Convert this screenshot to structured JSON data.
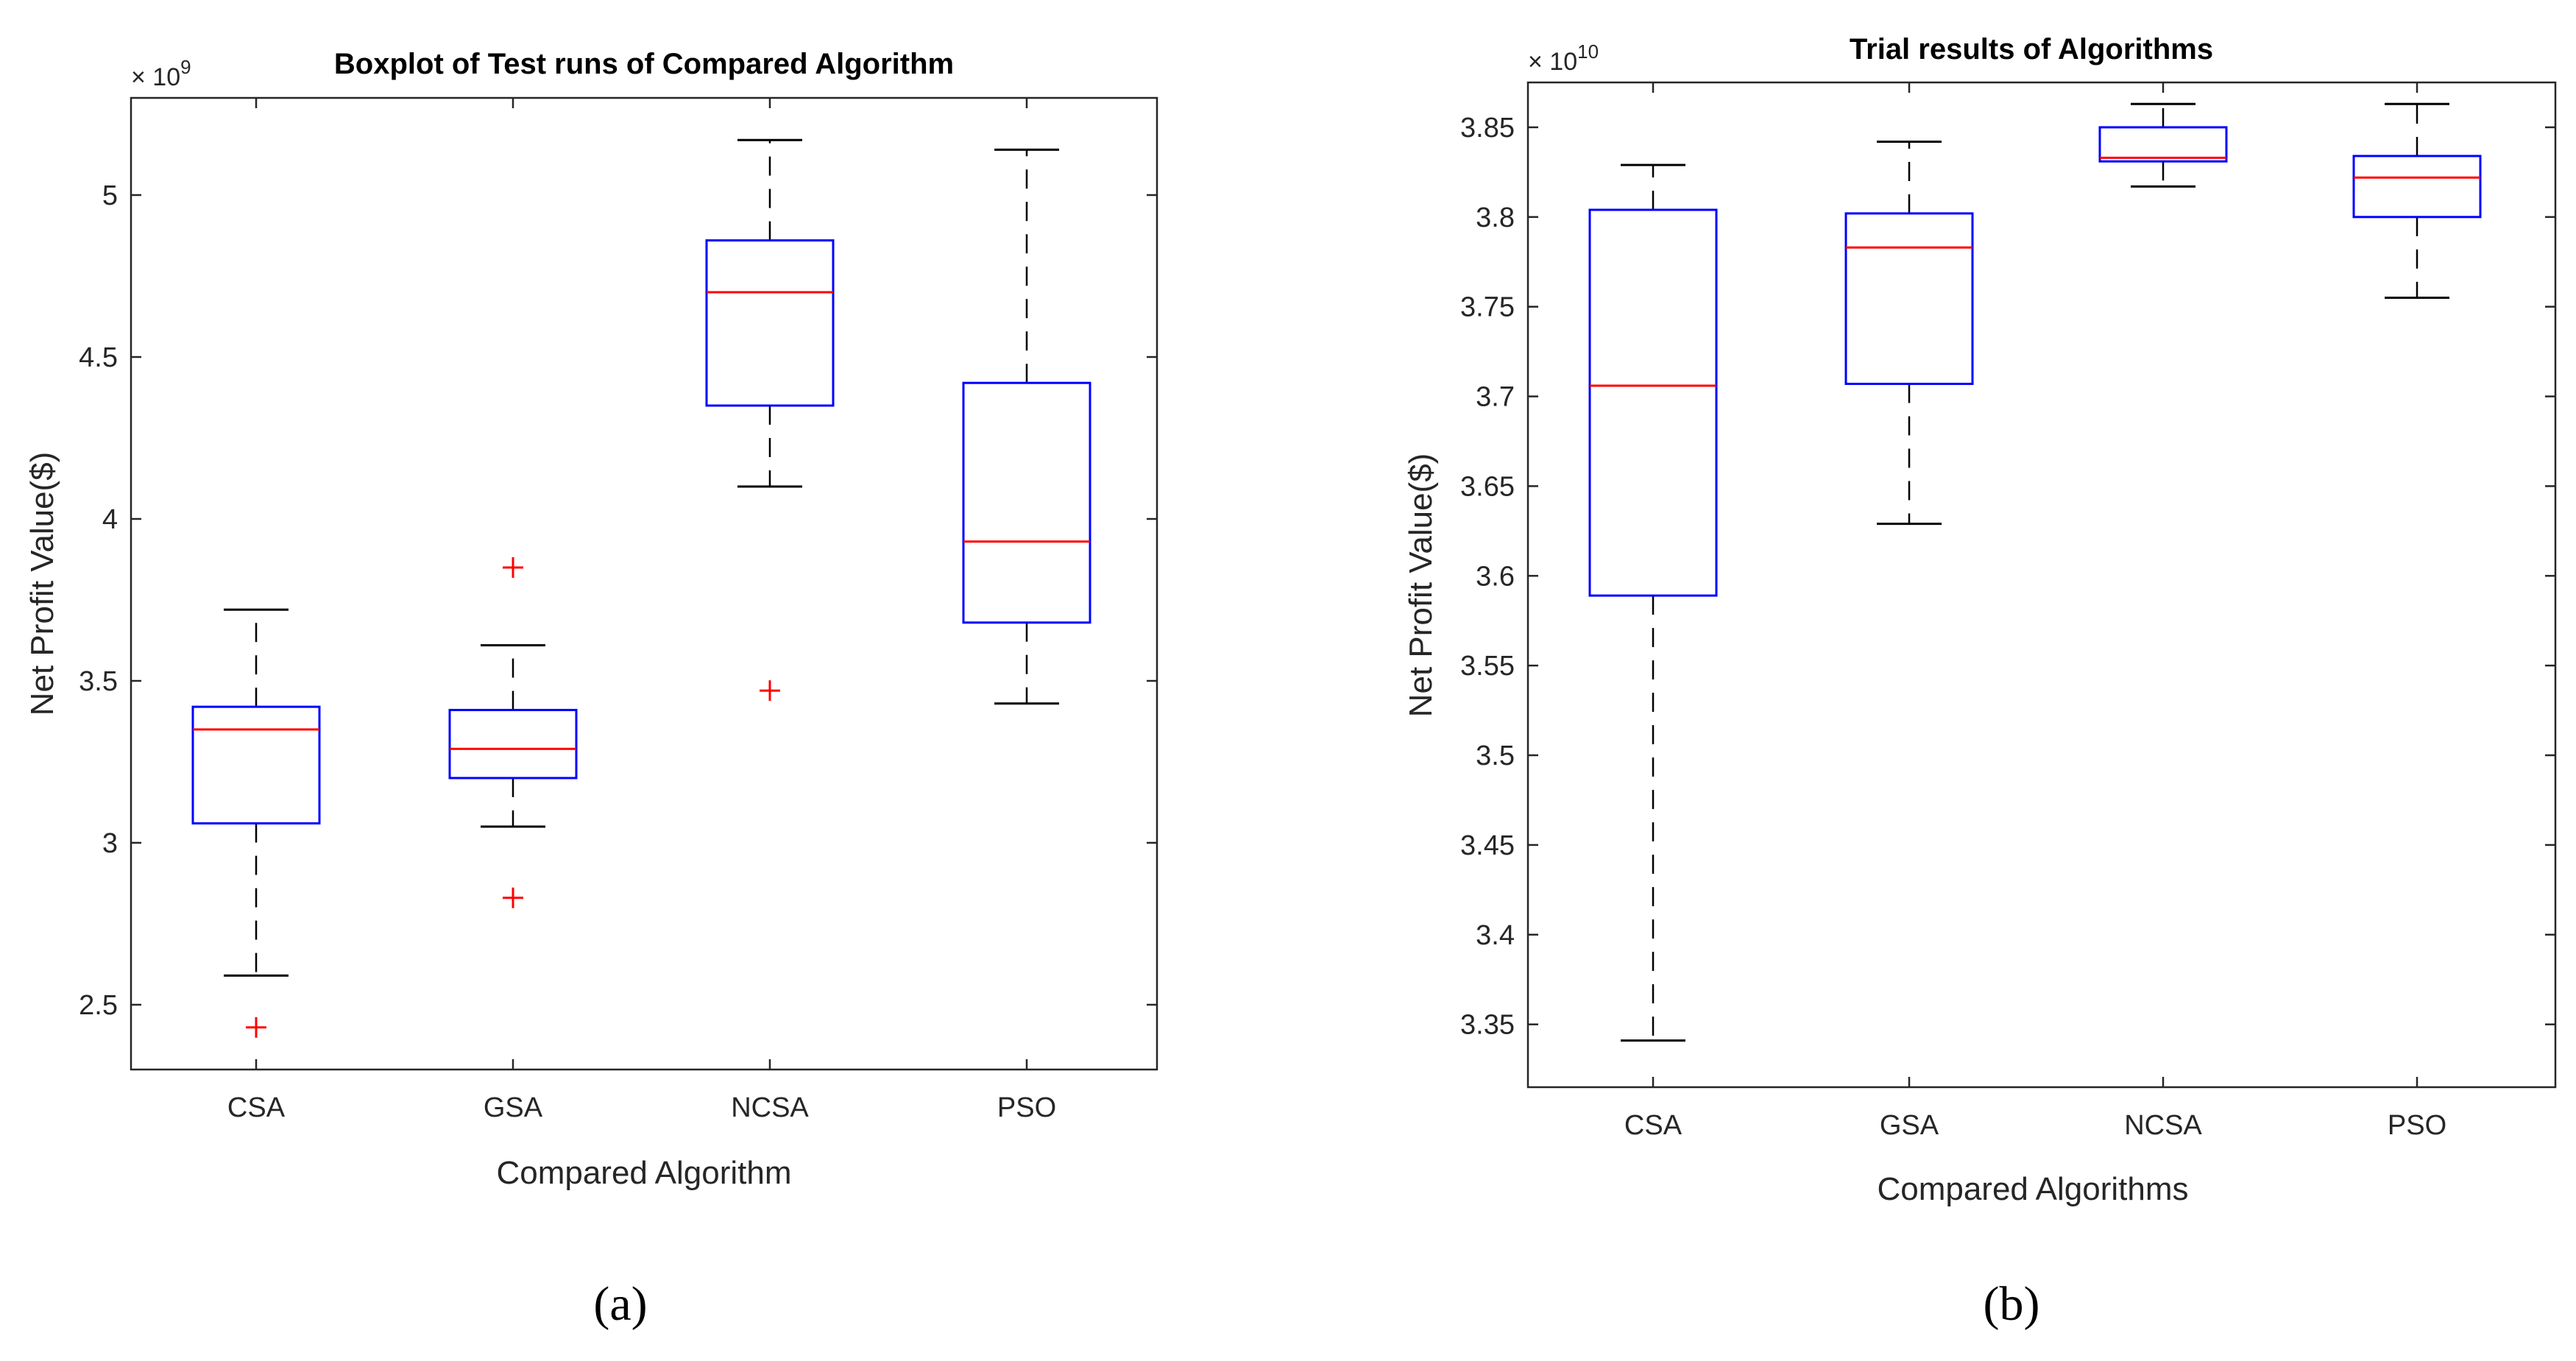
{
  "chart_data": [
    {
      "type": "boxplot",
      "title": "Boxplot of Test runs of Compared Algorithm",
      "xlabel": "Compared Algorithm",
      "ylabel": "Net Profit Value($)",
      "y_scale_base": "× 10",
      "y_scale_exponent": "9",
      "ylim": [
        2.3,
        5.3
      ],
      "yticks": [
        2.5,
        3,
        3.5,
        4,
        4.5,
        5
      ],
      "ytick_labels": [
        "2.5",
        "3",
        "3.5",
        "4",
        "4.5",
        "5"
      ],
      "categories": [
        "CSA",
        "GSA",
        "NCSA",
        "PSO"
      ],
      "boxes": [
        {
          "label": "CSA",
          "whisker_low": 2.59,
          "q1": 3.06,
          "median": 3.35,
          "q3": 3.42,
          "whisker_high": 3.72,
          "outliers": [
            2.43
          ]
        },
        {
          "label": "GSA",
          "whisker_low": 3.05,
          "q1": 3.2,
          "median": 3.29,
          "q3": 3.41,
          "whisker_high": 3.61,
          "outliers": [
            3.85,
            2.83
          ]
        },
        {
          "label": "NCSA",
          "whisker_low": 4.1,
          "q1": 4.35,
          "median": 4.7,
          "q3": 4.86,
          "whisker_high": 5.17,
          "outliers": [
            3.47
          ]
        },
        {
          "label": "PSO",
          "whisker_low": 3.43,
          "q1": 3.68,
          "median": 3.93,
          "q3": 4.42,
          "whisker_high": 5.14,
          "outliers": []
        }
      ],
      "caption": "(a)"
    },
    {
      "type": "boxplot",
      "title": "Trial results of Algorithms",
      "xlabel": "Compared Algorithms",
      "ylabel": "Net Profit Value($)",
      "y_scale_base": "× 10",
      "y_scale_exponent": "10",
      "ylim": [
        3.315,
        3.875
      ],
      "yticks": [
        3.35,
        3.4,
        3.45,
        3.5,
        3.55,
        3.6,
        3.65,
        3.7,
        3.75,
        3.8,
        3.85
      ],
      "ytick_labels": [
        "3.35",
        "3.4",
        "3.45",
        "3.5",
        "3.55",
        "3.6",
        "3.65",
        "3.7",
        "3.75",
        "3.8",
        "3.85"
      ],
      "categories": [
        "CSA",
        "GSA",
        "NCSA",
        "PSO"
      ],
      "boxes": [
        {
          "label": "CSA",
          "whisker_low": 3.341,
          "q1": 3.589,
          "median": 3.706,
          "q3": 3.804,
          "whisker_high": 3.829,
          "outliers": []
        },
        {
          "label": "GSA",
          "whisker_low": 3.629,
          "q1": 3.707,
          "median": 3.783,
          "q3": 3.802,
          "whisker_high": 3.842,
          "outliers": []
        },
        {
          "label": "NCSA",
          "whisker_low": 3.817,
          "q1": 3.831,
          "median": 3.833,
          "q3": 3.85,
          "whisker_high": 3.863,
          "outliers": []
        },
        {
          "label": "PSO",
          "whisker_low": 3.755,
          "q1": 3.8,
          "median": 3.822,
          "q3": 3.834,
          "whisker_high": 3.863,
          "outliers": []
        }
      ],
      "caption": "(b)"
    }
  ],
  "colors": {
    "box": "#0000ff",
    "median": "#ff0000",
    "whisker": "#000000",
    "outlier": "#ff0000",
    "axis": "#262626"
  }
}
